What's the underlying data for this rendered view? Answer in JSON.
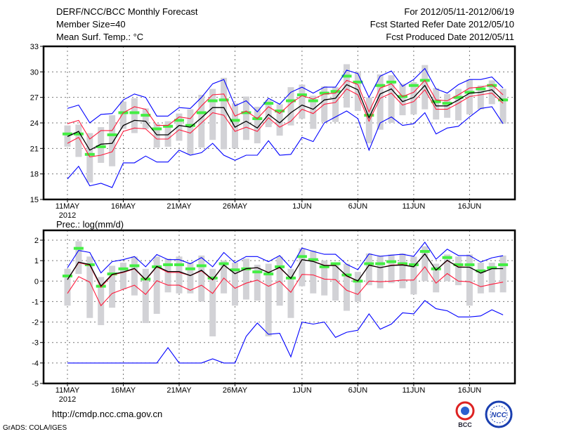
{
  "header": {
    "title": "DERF/NCC/BCC Monthly Forecast",
    "member_size": "Member Size=40",
    "variable": "Mean Surf. Temp.: °C",
    "period": "For 2012/05/11-2012/06/19",
    "started": "Fcst Started Refer Date 2012/05/10",
    "produced": "Fcst Produced Date 2012/05/11"
  },
  "footer": {
    "url": "http://cmdp.ncc.cma.gov.cn",
    "grads": "GrADS: COLA/IGES",
    "logo_bcc": "BCC",
    "logo_ncc": "NCC"
  },
  "colors": {
    "max_min": "#0000ff",
    "spread": "#ff1a3c",
    "mean": "#000000",
    "median": "#44ee44",
    "box": "#d2d2d6"
  },
  "chart_data": [
    {
      "type": "line",
      "title": "Mean Surf. Temp.: °C",
      "ylabel": "°C",
      "ylim": [
        15,
        33
      ],
      "yticks": [
        "33",
        "30",
        "27",
        "24",
        "21",
        "18",
        "15"
      ],
      "ytick_values": [
        33,
        30,
        27,
        24,
        21,
        18,
        15
      ],
      "xticks": [
        {
          "day": 0,
          "label": "11MAY"
        },
        {
          "day": 5,
          "label": "16MAY"
        },
        {
          "day": 10,
          "label": "21MAY"
        },
        {
          "day": 15,
          "label": "26MAY"
        },
        {
          "day": 21,
          "label": "1JUN"
        },
        {
          "day": 26,
          "label": "6JUN"
        },
        {
          "day": 31,
          "label": "11JUN"
        },
        {
          "day": 36,
          "label": "16JUN"
        }
      ],
      "year_label": "2012",
      "grid": true,
      "series": [
        {
          "name": "max",
          "color": "max_min",
          "values": [
            25.7,
            26.1,
            24.0,
            25.0,
            25.1,
            26.7,
            27.4,
            27.0,
            24.8,
            24.8,
            25.8,
            25.7,
            27.0,
            28.6,
            29.1,
            26.0,
            26.6,
            25.3,
            26.9,
            26.2,
            27.6,
            28.2,
            27.5,
            28.2,
            28.2,
            30.2,
            29.8,
            27.0,
            29.5,
            30.1,
            28.3,
            29.1,
            30.4,
            28.0,
            27.5,
            28.5,
            29.1,
            29.1,
            29.4,
            28.1
          ]
        },
        {
          "name": "upper",
          "color": "spread",
          "values": [
            23.9,
            24.3,
            22.1,
            23.1,
            23.1,
            25.2,
            25.9,
            25.6,
            23.7,
            23.7,
            24.7,
            24.5,
            26.0,
            27.3,
            27.4,
            24.8,
            25.4,
            24.5,
            25.9,
            25.1,
            26.3,
            27.2,
            26.8,
            27.4,
            27.5,
            29.0,
            28.5,
            25.3,
            28.1,
            28.6,
            27.1,
            27.6,
            29.0,
            26.7,
            26.6,
            27.3,
            28.1,
            28.2,
            28.5,
            27.3
          ]
        },
        {
          "name": "mean",
          "color": "mean",
          "values": [
            22.4,
            23.0,
            20.8,
            21.5,
            21.6,
            23.7,
            24.3,
            24.2,
            22.6,
            22.6,
            23.7,
            23.5,
            24.6,
            25.8,
            25.8,
            23.5,
            24.2,
            23.4,
            25.0,
            24.0,
            25.2,
            26.1,
            25.6,
            26.7,
            26.9,
            28.5,
            27.9,
            24.6,
            27.4,
            28.0,
            26.5,
            27.0,
            28.4,
            26.0,
            26.0,
            26.7,
            27.5,
            27.6,
            27.9,
            26.6
          ]
        },
        {
          "name": "lower",
          "color": "spread",
          "values": [
            21.6,
            22.3,
            20.0,
            20.2,
            20.6,
            23.0,
            23.4,
            23.3,
            22.1,
            22.1,
            23.2,
            22.8,
            24.0,
            25.2,
            24.9,
            23.0,
            23.5,
            23.0,
            24.6,
            23.5,
            24.2,
            25.6,
            25.1,
            26.2,
            26.4,
            28.0,
            27.3,
            24.2,
            26.9,
            27.5,
            26.1,
            26.5,
            27.9,
            25.6,
            25.6,
            26.3,
            27.1,
            27.3,
            27.5,
            26.3
          ]
        },
        {
          "name": "min",
          "color": "max_min",
          "values": [
            17.4,
            18.9,
            16.6,
            16.9,
            16.4,
            19.3,
            19.3,
            20.1,
            19.4,
            19.4,
            20.8,
            20.2,
            20.5,
            21.6,
            20.2,
            19.6,
            20.2,
            20.2,
            21.9,
            20.2,
            20.3,
            22.3,
            21.8,
            24.0,
            24.7,
            25.4,
            24.5,
            20.8,
            24.0,
            24.7,
            23.7,
            23.9,
            25.2,
            22.7,
            23.4,
            23.6,
            24.7,
            25.7,
            25.9,
            23.9
          ]
        }
      ],
      "median": [
        22.7,
        22.7,
        20.3,
        21.2,
        22.6,
        25.2,
        25.2,
        24.9,
        23.3,
        23.6,
        24.3,
        23.7,
        25.2,
        26.6,
        26.7,
        24.3,
        25.2,
        24.5,
        26.3,
        25.4,
        26.6,
        27.3,
        26.6,
        27.5,
        27.7,
        29.5,
        28.8,
        24.9,
        28.4,
        28.8,
        27.1,
        28.4,
        29.0,
        26.5,
        26.3,
        27.0,
        27.6,
        28.0,
        28.4,
        26.7
      ],
      "box_low": [
        21.2,
        20.0,
        17.0,
        19.3,
        18.9,
        23.3,
        22.8,
        23.3,
        21.1,
        21.2,
        21.9,
        20.3,
        21.1,
        22.0,
        20.9,
        21.0,
        22.0,
        21.6,
        23.5,
        22.5,
        23.7,
        24.5,
        23.3,
        24.1,
        24.1,
        25.8,
        25.4,
        21.6,
        23.2,
        24.0,
        24.9,
        25.0,
        25.6,
        24.4,
        24.6,
        24.3,
        25.0,
        25.6,
        26.2,
        23.9
      ],
      "box_high": [
        23.7,
        23.8,
        22.8,
        23.5,
        24.9,
        26.5,
        26.9,
        25.7,
        23.9,
        24.2,
        25.1,
        25.6,
        27.3,
        28.0,
        29.3,
        26.3,
        27.1,
        25.9,
        26.7,
        26.2,
        28.2,
        28.5,
        27.2,
        28.3,
        28.2,
        30.9,
        29.9,
        27.0,
        29.7,
        29.6,
        28.6,
        28.8,
        30.8,
        28.1,
        27.4,
        28.0,
        29.1,
        28.4,
        29.0,
        28.0
      ]
    },
    {
      "type": "line",
      "title": "Prec.: log(mm/d)",
      "ylabel": "log(mm/d)",
      "ylim": [
        -5,
        2.5
      ],
      "yticks": [
        "2",
        "1",
        "0",
        "-1",
        "-2",
        "-3",
        "-4",
        "-5"
      ],
      "ytick_values": [
        2,
        1,
        0,
        -1,
        -2,
        -3,
        -4,
        -5
      ],
      "xticks": [
        {
          "day": 0,
          "label": "11MAY"
        },
        {
          "day": 5,
          "label": "16MAY"
        },
        {
          "day": 10,
          "label": "21MAY"
        },
        {
          "day": 15,
          "label": "26MAY"
        },
        {
          "day": 21,
          "label": "1JUN"
        },
        {
          "day": 26,
          "label": "6JUN"
        },
        {
          "day": 31,
          "label": "11JUN"
        },
        {
          "day": 36,
          "label": "16JUN"
        }
      ],
      "year_label": "2012",
      "grid": true,
      "series": [
        {
          "name": "max",
          "color": "max_min",
          "values": [
            0.65,
            1.5,
            1.4,
            0.4,
            0.95,
            1.05,
            1.2,
            0.7,
            1.3,
            1.05,
            1.05,
            0.85,
            1.15,
            0.7,
            1.4,
            0.9,
            1.2,
            1.2,
            0.95,
            1.25,
            0.65,
            1.62,
            1.45,
            1.31,
            1.31,
            0.82,
            0.56,
            1.33,
            1.21,
            1.27,
            1.31,
            1.21,
            1.9,
            1.07,
            1.56,
            1.25,
            1.25,
            0.93,
            1.14,
            1.24
          ]
        },
        {
          "name": "upper",
          "color": "spread",
          "values": [
            0.07,
            0.9,
            0.78,
            -0.3,
            0.3,
            0.42,
            0.6,
            0.05,
            0.7,
            0.42,
            0.42,
            0.27,
            0.5,
            0.05,
            0.78,
            0.36,
            0.6,
            0.66,
            0.43,
            0.65,
            0.13,
            1.05,
            0.97,
            0.77,
            0.77,
            0.24,
            0.0,
            0.79,
            0.66,
            0.78,
            0.81,
            0.7,
            1.33,
            0.53,
            1.0,
            0.7,
            0.68,
            0.39,
            0.61,
            0.61
          ]
        },
        {
          "name": "mean",
          "color": "mean",
          "values": [
            0.07,
            0.93,
            0.81,
            -0.24,
            0.33,
            0.45,
            0.62,
            0.07,
            0.72,
            0.47,
            0.47,
            0.27,
            0.53,
            0.07,
            0.79,
            0.36,
            0.61,
            0.66,
            0.41,
            0.68,
            0.13,
            1.05,
            0.96,
            0.76,
            0.76,
            0.26,
            0.01,
            0.78,
            0.66,
            0.76,
            0.79,
            0.7,
            1.33,
            0.53,
            1.02,
            0.68,
            0.68,
            0.39,
            0.61,
            0.61
          ]
        },
        {
          "name": "lower",
          "color": "spread",
          "values": [
            -0.6,
            0.22,
            -0.05,
            -1.2,
            -0.6,
            -0.4,
            -0.2,
            -0.65,
            0.02,
            -0.2,
            -0.2,
            -0.45,
            -0.2,
            -0.6,
            0.15,
            -0.35,
            -0.1,
            0.05,
            -0.25,
            0.0,
            -0.55,
            0.33,
            0.3,
            0.1,
            0.07,
            -0.45,
            -0.65,
            0.0,
            -0.03,
            0.0,
            0.05,
            0.05,
            0.7,
            -0.1,
            0.37,
            0.0,
            -0.03,
            -0.27,
            -0.15,
            -0.05
          ]
        },
        {
          "name": "min",
          "color": "max_min",
          "values": [
            -4,
            -4,
            -4,
            -4,
            -4,
            -4,
            -4,
            -4,
            -4,
            -3.25,
            -4,
            -4,
            -4,
            -3.8,
            -4,
            -4,
            -2.7,
            -2.05,
            -2.6,
            -2.55,
            -3.7,
            -2.0,
            -2.1,
            -2.0,
            -2.75,
            -2.5,
            -2.4,
            -1.6,
            -2.35,
            -2.1,
            -1.55,
            -1.6,
            -0.95,
            -1.35,
            -1.45,
            -1.75,
            -1.75,
            -1.7,
            -1.4,
            -1.65
          ]
        }
      ],
      "median": [
        0.25,
        1.6,
        0.8,
        -0.25,
        0.35,
        0.6,
        0.75,
        0.1,
        0.7,
        0.8,
        0.8,
        0.6,
        0.75,
        0.15,
        0.85,
        0.55,
        0.6,
        0.45,
        0.35,
        0.7,
        0.15,
        1.2,
        1.05,
        0.7,
        0.85,
        0.3,
        0.0,
        0.85,
        0.85,
        0.95,
        0.85,
        0.8,
        1.45,
        0.6,
        1.15,
        0.8,
        0.8,
        0.5,
        0.65,
        0.8
      ],
      "box_low": [
        -1.2,
        0.35,
        -1.8,
        -2.15,
        -1.3,
        -0.4,
        -0.7,
        -2.05,
        -1.6,
        -0.55,
        -0.6,
        -0.6,
        -1.0,
        -2.7,
        -0.6,
        -1.2,
        -0.9,
        -0.95,
        -2.7,
        -1.2,
        -1.8,
        -0.25,
        -0.6,
        -0.7,
        -0.95,
        -1.45,
        -1.0,
        -0.2,
        -0.35,
        -0.1,
        -0.35,
        -0.65,
        0.0,
        -0.55,
        0.0,
        -0.2,
        -1.2,
        -0.6,
        -0.55,
        -0.55
      ],
      "box_high": [
        0.6,
        1.95,
        1.2,
        0.2,
        0.75,
        0.9,
        1.2,
        0.6,
        1.2,
        1.1,
        1.2,
        0.9,
        1.25,
        0.6,
        1.0,
        0.9,
        1.1,
        0.8,
        0.85,
        1.2,
        0.6,
        1.6,
        1.5,
        1.0,
        0.9,
        0.85,
        0.45,
        1.35,
        1.25,
        1.3,
        1.35,
        1.2,
        1.7,
        0.85,
        1.3,
        1.2,
        1.3,
        0.9,
        0.9,
        1.25
      ]
    }
  ]
}
